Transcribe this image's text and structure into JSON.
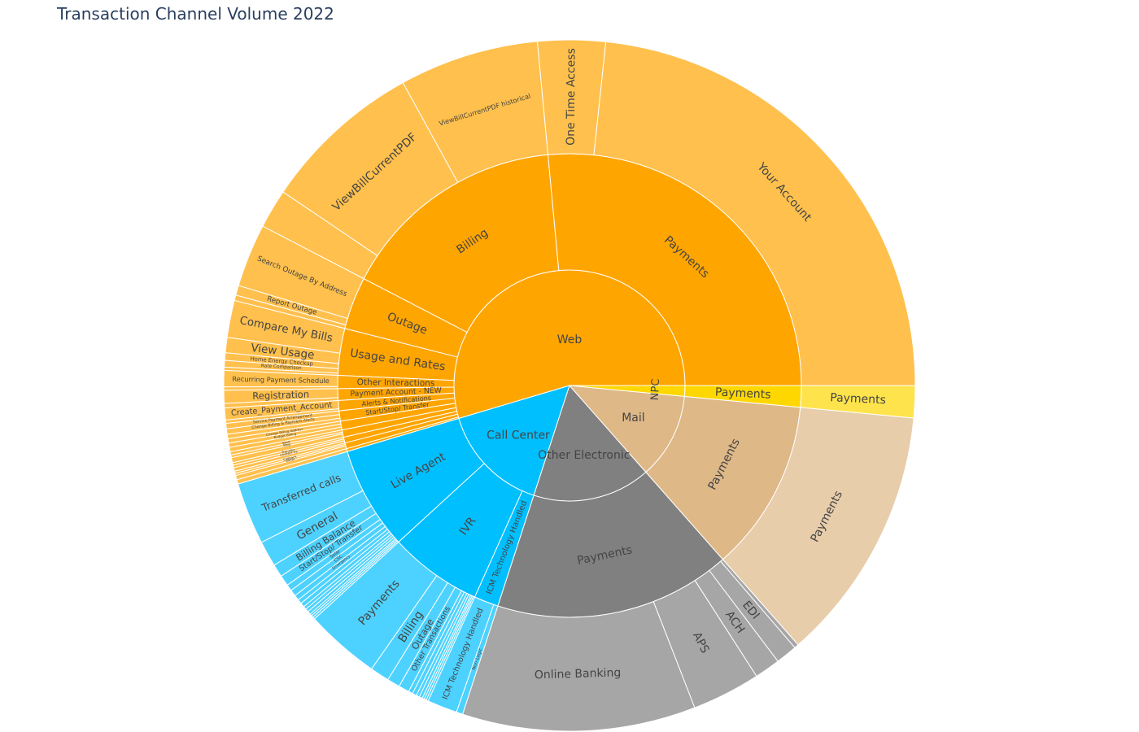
{
  "title": "Transaction Channel Volume 2022",
  "colors": {
    "Web": "#ffa500",
    "Call Center": "#00bfff",
    "Other Electronic": "#808080",
    "Mail": "#deb887",
    "NPC": "#ffd700"
  },
  "chart_data": {
    "type": "sunburst",
    "title": "Transaction Channel Volume 2022",
    "unit": "share of total volume (%)",
    "tree": [
      {
        "name": "Web",
        "value": 54.6,
        "children": [
          {
            "name": "Payments",
            "value": 26.0,
            "children": [
              {
                "name": "Your Account",
                "value": 22.9
              },
              {
                "name": "One Time Access",
                "value": 3.1
              }
            ]
          },
          {
            "name": "Billing",
            "value": 15.6,
            "children": [
              {
                "name": "ViewBillCurrentPDF historical",
                "value": 6.4
              },
              {
                "name": "ViewBillCurrentPDF",
                "value": 7.4
              },
              {
                "name": "",
                "value": 1.8
              }
            ]
          },
          {
            "name": "Outage",
            "value": 3.6,
            "children": [
              {
                "name": "Search Outage By Address",
                "value": 2.9
              },
              {
                "name": "Report Outage",
                "value": 0.45
              },
              {
                "name": "",
                "value": 0.25
              }
            ]
          },
          {
            "name": "Usage and Rates",
            "value": 3.2,
            "children": [
              {
                "name": "Compare My Bills",
                "value": 1.7
              },
              {
                "name": "View Usage",
                "value": 0.7
              },
              {
                "name": "Home Energy Checkup",
                "value": 0.35
              },
              {
                "name": "Rate Comparison",
                "value": 0.3
              },
              {
                "name": "",
                "value": 0.15
              }
            ]
          },
          {
            "name": "Other Interactions",
            "value": 0.9,
            "children": [
              {
                "name": "Recurring Payment Schedule",
                "value": 0.75
              },
              {
                "name": "",
                "value": 0.15
              }
            ]
          },
          {
            "name": "Payment Account - NEW",
            "value": 0.8,
            "children": [
              {
                "name": "Registration",
                "value": 0.6
              },
              {
                "name": "",
                "value": 0.2
              }
            ]
          },
          {
            "name": "Alerts & Notifications",
            "value": 0.7,
            "children": [
              {
                "name": "Create_Payment_Account",
                "value": 0.55
              },
              {
                "name": "",
                "value": 0.15
              }
            ]
          },
          {
            "name": "Start/Stop/ Transfer",
            "value": 0.7,
            "children": [
              {
                "name": "Service Payment Arrangement",
                "value": 0.25
              },
              {
                "name": "Change Billing & Payment Alerts",
                "value": 0.25
              },
              {
                "name": "",
                "value": 0.2
              }
            ]
          },
          {
            "name": "",
            "value": 0.6,
            "children": [
              {
                "name": "Change Billing Address",
                "value": 0.2
              },
              {
                "name": "Budget Billing",
                "value": 0.2
              },
              {
                "name": "",
                "value": 0.2
              }
            ]
          },
          {
            "name": "",
            "value": 0.5,
            "children": [
              {
                "name": "Start",
                "value": 0.15
              },
              {
                "name": "Stop",
                "value": 0.12
              },
              {
                "name": "",
                "value": 0.23
              }
            ]
          },
          {
            "name": "",
            "value": 0.4,
            "children": [
              {
                "name": "Transfer",
                "value": 0.12
              },
              {
                "name": "Contact Us",
                "value": 0.12
              },
              {
                "name": "",
                "value": 0.16
              }
            ]
          },
          {
            "name": "",
            "value": 0.4,
            "children": [
              {
                "name": "Callback",
                "value": 0.1
              },
              {
                "name": "Other",
                "value": 0.1
              },
              {
                "name": "",
                "value": 0.2
              }
            ]
          },
          {
            "name": "",
            "value": 0.2,
            "children": [
              {
                "name": "",
                "value": 0.2
              }
            ]
          }
        ]
      },
      {
        "name": "Call Center",
        "value": 15.4,
        "children": [
          {
            "name": "Live Agent",
            "value": 7.2,
            "children": [
              {
                "name": "Transferred calls",
                "value": 2.9
              },
              {
                "name": "General",
                "value": 1.2
              },
              {
                "name": "Billing Balance",
                "value": 0.6
              },
              {
                "name": "Start/Stop/ Transfer",
                "value": 0.5
              },
              {
                "name": "Solar",
                "value": 0.3
              },
              {
                "name": "CSC",
                "value": 0.3
              },
              {
                "name": "Emergency",
                "value": 0.25
              },
              {
                "name": "",
                "value": 0.2
              },
              {
                "name": "",
                "value": 0.2
              },
              {
                "name": "",
                "value": 0.15
              },
              {
                "name": "",
                "value": 0.15
              },
              {
                "name": "",
                "value": 0.15
              },
              {
                "name": "",
                "value": 0.1
              },
              {
                "name": "",
                "value": 0.1
              },
              {
                "name": "",
                "value": 0.1
              }
            ]
          },
          {
            "name": "IVR",
            "value": 6.5,
            "children": [
              {
                "name": "Payments",
                "value": 3.5
              },
              {
                "name": "Billing",
                "value": 0.9
              },
              {
                "name": "Outage",
                "value": 0.6
              },
              {
                "name": "Other Transactions",
                "value": 0.5
              },
              {
                "name": "",
                "value": 0.2
              },
              {
                "name": "",
                "value": 0.2
              },
              {
                "name": "",
                "value": 0.15
              },
              {
                "name": "",
                "value": 0.15
              },
              {
                "name": "",
                "value": 0.1
              },
              {
                "name": "",
                "value": 0.1
              },
              {
                "name": "",
                "value": 0.1
              }
            ]
          },
          {
            "name": "ICM Technology Handled",
            "value": 1.7,
            "children": [
              {
                "name": "ICM Technology Handled",
                "value": 1.4
              },
              {
                "name": "Non-Logic",
                "value": 0.3
              }
            ]
          }
        ]
      },
      {
        "name": "Other Electronic",
        "value": 16.5,
        "children": [
          {
            "name": "Payments",
            "value": 16.5,
            "children": [
              {
                "name": "Online Banking",
                "value": 10.9
              },
              {
                "name": "APS",
                "value": 3.2
              },
              {
                "name": "ACH",
                "value": 1.2
              },
              {
                "name": "EDI",
                "value": 1.0
              },
              {
                "name": "",
                "value": 0.2
              }
            ]
          }
        ]
      },
      {
        "name": "Mail",
        "value": 12.0,
        "children": [
          {
            "name": "Payments",
            "value": 12.0,
            "children": [
              {
                "name": "Payments",
                "value": 12.0
              }
            ]
          }
        ]
      },
      {
        "name": "NPC",
        "value": 1.5,
        "children": [
          {
            "name": "Payments",
            "value": 1.5,
            "children": [
              {
                "name": "Payments",
                "value": 1.5
              }
            ]
          }
        ]
      }
    ]
  }
}
